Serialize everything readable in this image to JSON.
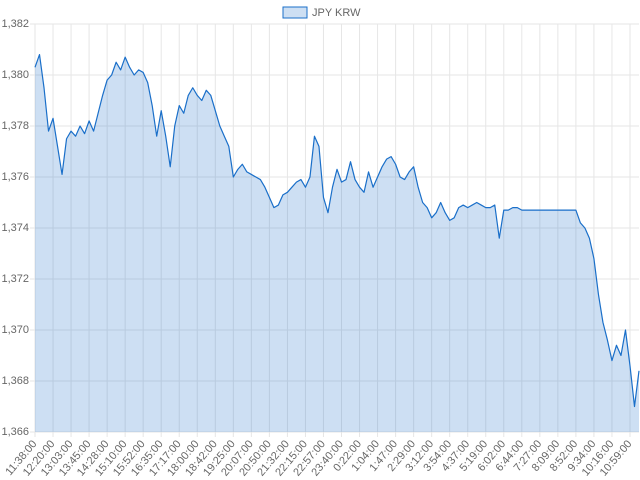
{
  "chart_data": {
    "type": "line",
    "categories": [
      "11:38:00",
      null,
      null,
      null,
      "12:20:00",
      null,
      null,
      null,
      "13:03:00",
      null,
      null,
      null,
      "13:45:00",
      null,
      null,
      null,
      "14:28:00",
      null,
      null,
      null,
      "15:10:00",
      null,
      null,
      null,
      "15:52:00",
      null,
      null,
      null,
      "16:35:00",
      null,
      null,
      null,
      "17:17:00",
      null,
      null,
      null,
      "18:00:00",
      null,
      null,
      null,
      "18:42:00",
      null,
      null,
      null,
      "19:25:00",
      null,
      null,
      null,
      "20:07:00",
      null,
      null,
      null,
      "20:50:00",
      null,
      null,
      null,
      "21:32:00",
      null,
      null,
      null,
      "22:15:00",
      null,
      null,
      null,
      "22:57:00",
      null,
      null,
      null,
      "23:40:00",
      null,
      null,
      null,
      "0:22:00",
      null,
      null,
      null,
      "1:04:00",
      null,
      null,
      null,
      "1:47:00",
      null,
      null,
      null,
      "2:29:00",
      null,
      null,
      null,
      "3:12:00",
      null,
      null,
      null,
      "3:54:00",
      null,
      null,
      null,
      "4:37:00",
      null,
      null,
      null,
      "5:19:00",
      null,
      null,
      null,
      "6:02:00",
      null,
      null,
      null,
      "6:44:00",
      null,
      null,
      null,
      "7:27:00",
      null,
      null,
      null,
      "8:09:00",
      null,
      null,
      null,
      "8:52:00",
      null,
      null,
      null,
      "9:34:00",
      null,
      null,
      null,
      "10:16:00",
      null,
      null,
      null,
      "10:59:00",
      null,
      null
    ],
    "series": [
      {
        "name": "JPY KRW",
        "color": "#1a6fc9",
        "fill": true,
        "values": [
          1380.3,
          1380.8,
          1379.5,
          1377.8,
          1378.3,
          1377.2,
          1376.1,
          1377.5,
          1377.8,
          1377.6,
          1378.0,
          1377.7,
          1378.2,
          1377.8,
          1378.5,
          1379.2,
          1379.8,
          1380.0,
          1380.5,
          1380.2,
          1380.7,
          1380.3,
          1380.0,
          1380.2,
          1380.1,
          1379.7,
          1378.8,
          1377.6,
          1378.6,
          1377.6,
          1376.4,
          1378.0,
          1378.8,
          1378.5,
          1379.2,
          1379.5,
          1379.2,
          1379.0,
          1379.4,
          1379.2,
          1378.6,
          1378.0,
          1377.6,
          1377.2,
          1376.0,
          1376.3,
          1376.5,
          1376.2,
          1376.1,
          1376.0,
          1375.9,
          1375.6,
          1375.2,
          1374.8,
          1374.9,
          1375.3,
          1375.4,
          1375.6,
          1375.8,
          1375.9,
          1375.6,
          1376.0,
          1377.6,
          1377.2,
          1375.2,
          1374.6,
          1375.6,
          1376.3,
          1375.8,
          1375.9,
          1376.6,
          1375.9,
          1375.6,
          1375.4,
          1376.2,
          1375.6,
          1376.0,
          1376.4,
          1376.7,
          1376.8,
          1376.5,
          1376.0,
          1375.9,
          1376.2,
          1376.4,
          1375.6,
          1375.0,
          1374.8,
          1374.4,
          1374.6,
          1375.0,
          1374.6,
          1374.3,
          1374.4,
          1374.8,
          1374.9,
          1374.8,
          1374.9,
          1375.0,
          1374.9,
          1374.8,
          1374.8,
          1374.9,
          1373.6,
          1374.7,
          1374.7,
          1374.8,
          1374.8,
          1374.7,
          1374.7,
          1374.7,
          1374.7,
          1374.7,
          1374.7,
          1374.7,
          1374.7,
          1374.7,
          1374.7,
          1374.7,
          1374.7,
          1374.7,
          1374.2,
          1374.0,
          1373.6,
          1372.8,
          1371.4,
          1370.3,
          1369.6,
          1368.8,
          1369.4,
          1369.0,
          1370.0,
          1368.6,
          1367.0,
          1368.4
        ]
      }
    ],
    "ylim": [
      1366,
      1382
    ],
    "yticks": [
      {
        "value": 1366,
        "label": "1,366"
      },
      {
        "value": 1368,
        "label": "1,368"
      },
      {
        "value": 1370,
        "label": "1,370"
      },
      {
        "value": 1372,
        "label": "1,372"
      },
      {
        "value": 1374,
        "label": "1,374"
      },
      {
        "value": 1376,
        "label": "1,376"
      },
      {
        "value": 1378,
        "label": "1,378"
      },
      {
        "value": 1380,
        "label": "1,380"
      },
      {
        "value": 1382,
        "label": "1,382"
      }
    ],
    "grid": true,
    "legend": "top"
  }
}
